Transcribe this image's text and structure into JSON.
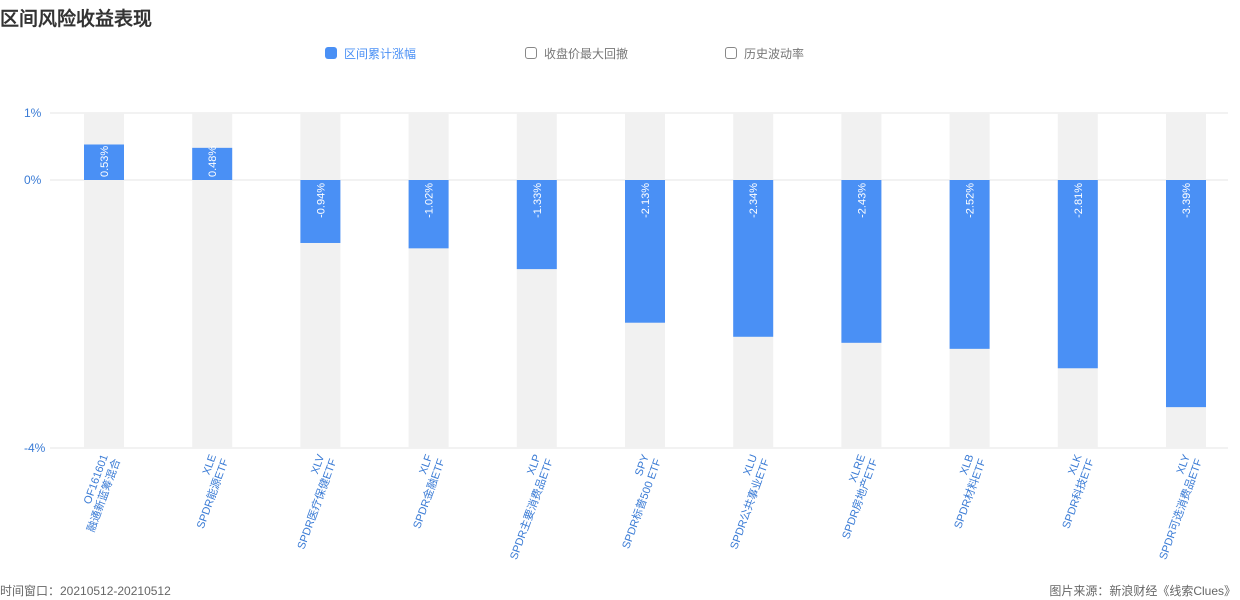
{
  "title": "区间风险收益表现",
  "legend": [
    {
      "label": "区间累计涨幅",
      "active": true
    },
    {
      "label": "收盘价最大回撤",
      "active": false
    },
    {
      "label": "历史波动率",
      "active": false
    }
  ],
  "footer": {
    "left": "时间窗口：20210512-20210512",
    "right": "图片来源：新浪财经《线索Clues》"
  },
  "colors": {
    "bar": "#4a90f5",
    "track": "#f1f1f1",
    "axis_text": "#3a7bd5",
    "grid": "#e6e6e6"
  },
  "chart_data": {
    "type": "bar",
    "yticks": [
      "1%",
      "0%",
      "-4%"
    ],
    "ylim": [
      -4,
      1
    ],
    "categories": [
      {
        "code": "OF161601",
        "name": "融通新蓝筹混合"
      },
      {
        "code": "XLE",
        "name": "SPDR能源ETF"
      },
      {
        "code": "XLV",
        "name": "SPDR医疗保健ETF"
      },
      {
        "code": "XLF",
        "name": "SPDR金融ETF"
      },
      {
        "code": "XLP",
        "name": "SPDR主要消费品ETF"
      },
      {
        "code": "SPY",
        "name": "SPDR标普500 ETF"
      },
      {
        "code": "XLU",
        "name": "SPDR公共事业ETF"
      },
      {
        "code": "XLRE",
        "name": "SPDR房地产ETF"
      },
      {
        "code": "XLB",
        "name": "SPDR材料ETF"
      },
      {
        "code": "XLK",
        "name": "SPDR科技ETF"
      },
      {
        "code": "XLY",
        "name": "SPDR可选消费品ETF"
      }
    ],
    "values": [
      0.53,
      0.48,
      -0.94,
      -1.02,
      -1.33,
      -2.13,
      -2.34,
      -2.43,
      -2.52,
      -2.81,
      -3.39
    ],
    "labels": [
      "0.53%",
      "0.48%",
      "-0.94%",
      "-1.02%",
      "-1.33%",
      "-2.13%",
      "-2.34%",
      "-2.43%",
      "-2.52%",
      "-2.81%",
      "-3.39%"
    ]
  }
}
